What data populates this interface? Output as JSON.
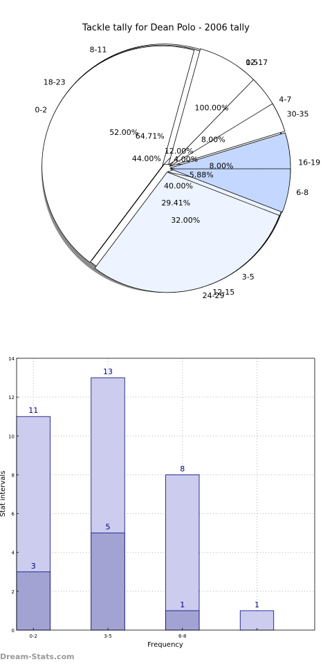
{
  "watermark": "Dream-Stats.com",
  "chart_data": [
    {
      "type": "pie",
      "title": "Tackle tally for Dean Polo - 2006 tally",
      "layers": [
        {
          "slices": [
            {
              "label": "0-5",
              "value": 100.0,
              "value_label": "100.00%",
              "color": "#ffffff"
            }
          ]
        },
        {
          "slices": [
            {
              "label": "0-2",
              "value": 44.0,
              "value_label": "44.00%",
              "color": "#ffffff"
            },
            {
              "label": "12-17",
              "value": 12.0,
              "value_label": "12.00%",
              "color": "#ffffff"
            },
            {
              "label": "30-35",
              "value": 4.0,
              "value_label": "4.00%",
              "color": "#ffffff"
            },
            {
              "label": "3-5",
              "value": 40.0,
              "value_label": "40.00%",
              "color": "#ffffff"
            }
          ]
        },
        {
          "slices": [
            {
              "label": "8-11",
              "value": 64.71,
              "value_label": "64.71%",
              "color": "#ffffff"
            },
            {
              "label": "6-8",
              "value": 5.88,
              "value_label": "5.88%",
              "color": "#c4d8ff"
            },
            {
              "label": "24-29",
              "value": 29.41,
              "value_label": "29.41%",
              "color": "#edf3ff"
            }
          ]
        },
        {
          "slices": [
            {
              "label": "18-23",
              "value": 52.0,
              "value_label": "52.00%",
              "color": "#ffffff"
            },
            {
              "label": "4-7",
              "value": 8.0,
              "value_label": "8.00%",
              "color": "#ffffff"
            },
            {
              "label": "16-19",
              "value": 8.0,
              "value_label": "8.00%",
              "color": "#c4d8ff"
            },
            {
              "label": "12-15",
              "value": 32.0,
              "value_label": "32.00%",
              "color": "#edf3ff"
            }
          ]
        }
      ]
    },
    {
      "type": "bar",
      "categories": [
        "0-2",
        "3-5",
        "6-8",
        ""
      ],
      "series": [
        {
          "values": [
            11,
            13,
            8,
            1
          ],
          "color": "#ccccee"
        },
        {
          "values": [
            3,
            5,
            1,
            null
          ],
          "color": "#a3a3d3"
        }
      ],
      "xlabel": "Frequency",
      "ylabel": "Stat intervals",
      "ylim": [
        0,
        14
      ],
      "yticks": [
        0,
        2,
        4,
        6,
        8,
        10,
        12,
        14
      ],
      "grid": true,
      "label_color": "#000080"
    }
  ]
}
